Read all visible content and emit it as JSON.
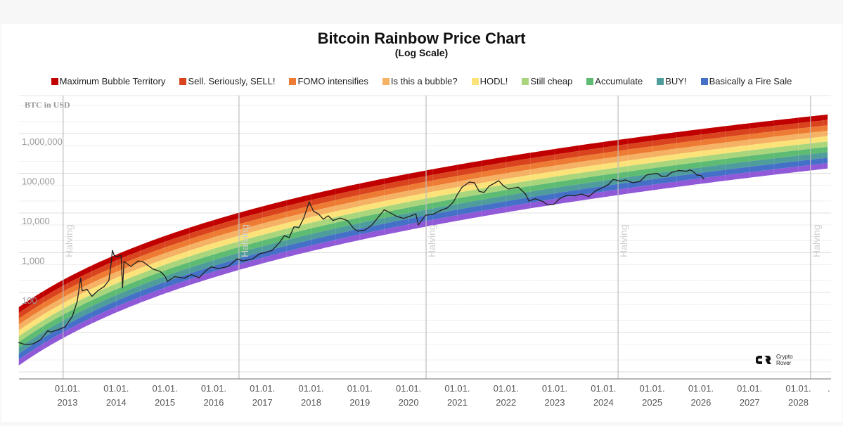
{
  "chart_data": {
    "type": "line",
    "title": "Bitcoin Rainbow Price Chart",
    "subtitle": "(Log Scale)",
    "ylabel": "BTC in USD",
    "xlabel": "",
    "yscale": "log",
    "ylim": [
      1,
      10000000
    ],
    "xlim": [
      2012.0,
      2028.6
    ],
    "y_ticks": [
      {
        "value": 1000000,
        "label": "1,000,000"
      },
      {
        "value": 100000,
        "label": "100,000"
      },
      {
        "value": 10000,
        "label": "10,000"
      },
      {
        "value": 1000,
        "label": "1,000"
      },
      {
        "value": 100,
        "label": "100"
      }
    ],
    "x_ticks": [
      {
        "year": 2013,
        "line1": "01.01.",
        "line2": "2013"
      },
      {
        "year": 2014,
        "line1": "01.01.",
        "line2": "2014"
      },
      {
        "year": 2015,
        "line1": "01.01.",
        "line2": "2015"
      },
      {
        "year": 2016,
        "line1": "01.01.",
        "line2": "2016"
      },
      {
        "year": 2017,
        "line1": "01.01.",
        "line2": "2017"
      },
      {
        "year": 2018,
        "line1": "01.01.",
        "line2": "2018"
      },
      {
        "year": 2019,
        "line1": "01.01.",
        "line2": "2019"
      },
      {
        "year": 2020,
        "line1": "01.01.",
        "line2": "2020"
      },
      {
        "year": 2021,
        "line1": "01.01.",
        "line2": "2021"
      },
      {
        "year": 2022,
        "line1": "01.01.",
        "line2": "2022"
      },
      {
        "year": 2023,
        "line1": "01.01.",
        "line2": "2023"
      },
      {
        "year": 2024,
        "line1": "01.01.",
        "line2": "2024"
      },
      {
        "year": 2025,
        "line1": "01.01.",
        "line2": "2025"
      },
      {
        "year": 2026,
        "line1": "01.01.",
        "line2": "2026"
      },
      {
        "year": 2027,
        "line1": "01.01.",
        "line2": "2027"
      },
      {
        "year": 2028,
        "line1": "01.01.",
        "line2": "2028"
      }
    ],
    "x_trailing_label": ".",
    "halvings": [
      {
        "year": 2012.91,
        "label": "Halving"
      },
      {
        "year": 2016.52,
        "label": "Halving"
      },
      {
        "year": 2020.36,
        "label": "Halving"
      },
      {
        "year": 2024.3,
        "label": "Halving"
      },
      {
        "year": 2028.25,
        "label": "Halving"
      }
    ],
    "legend_placement": "top",
    "bands": [
      {
        "name": "Maximum Bubble Territory",
        "color": "#c00000"
      },
      {
        "name": "Sell. Seriously, SELL!",
        "color": "#d9441f"
      },
      {
        "name": "FOMO intensifies",
        "color": "#ee7b33"
      },
      {
        "name": "Is this a bubble?",
        "color": "#f5b164"
      },
      {
        "name": "HODL!",
        "color": "#fbe37a"
      },
      {
        "name": "Still cheap",
        "color": "#a9d67c"
      },
      {
        "name": "Accumulate",
        "color": "#5dbb73"
      },
      {
        "name": "BUY!",
        "color": "#4e9c9b"
      },
      {
        "name": "Basically a Fire Sale",
        "color": "#4570c8"
      },
      {
        "name": "",
        "color": "#9059d8"
      }
    ],
    "band_model": {
      "top_log10_at_2012": 1.63,
      "top_log10_at_2028_6": 6.48,
      "band_width_decades_start": 1.47,
      "band_width_decades_end": 1.36
    },
    "series": [
      {
        "name": "BTC price",
        "color": "#222222",
        "points": [
          [
            2012.0,
            5.5
          ],
          [
            2012.1,
            5.0
          ],
          [
            2012.2,
            4.9
          ],
          [
            2012.3,
            5.1
          ],
          [
            2012.45,
            6.5
          ],
          [
            2012.6,
            11.0
          ],
          [
            2012.65,
            10.0
          ],
          [
            2012.8,
            11.5
          ],
          [
            2012.95,
            13.5
          ],
          [
            2013.1,
            25
          ],
          [
            2013.2,
            60
          ],
          [
            2013.27,
            230
          ],
          [
            2013.3,
            110
          ],
          [
            2013.4,
            120
          ],
          [
            2013.5,
            80
          ],
          [
            2013.62,
            110
          ],
          [
            2013.75,
            140
          ],
          [
            2013.85,
            200
          ],
          [
            2013.9,
            600
          ],
          [
            2013.92,
            1150
          ],
          [
            2013.96,
            850
          ],
          [
            2014.0,
            800
          ],
          [
            2014.1,
            850
          ],
          [
            2014.13,
            130
          ],
          [
            2014.16,
            600
          ],
          [
            2014.3,
            450
          ],
          [
            2014.45,
            620
          ],
          [
            2014.55,
            590
          ],
          [
            2014.65,
            480
          ],
          [
            2014.75,
            390
          ],
          [
            2014.9,
            340
          ],
          [
            2015.0,
            260
          ],
          [
            2015.05,
            190
          ],
          [
            2015.2,
            250
          ],
          [
            2015.4,
            230
          ],
          [
            2015.55,
            280
          ],
          [
            2015.7,
            235
          ],
          [
            2015.85,
            360
          ],
          [
            2015.95,
            440
          ],
          [
            2016.1,
            400
          ],
          [
            2016.3,
            450
          ],
          [
            2016.48,
            700
          ],
          [
            2016.6,
            620
          ],
          [
            2016.8,
            700
          ],
          [
            2016.95,
            950
          ],
          [
            2017.05,
            1000
          ],
          [
            2017.2,
            1150
          ],
          [
            2017.35,
            1800
          ],
          [
            2017.45,
            2700
          ],
          [
            2017.55,
            2400
          ],
          [
            2017.65,
            4500
          ],
          [
            2017.75,
            4300
          ],
          [
            2017.85,
            7500
          ],
          [
            2017.96,
            19000
          ],
          [
            2018.05,
            11000
          ],
          [
            2018.15,
            9500
          ],
          [
            2018.25,
            7000
          ],
          [
            2018.35,
            8500
          ],
          [
            2018.45,
            6500
          ],
          [
            2018.6,
            7500
          ],
          [
            2018.75,
            6400
          ],
          [
            2018.88,
            4000
          ],
          [
            2018.96,
            3500
          ],
          [
            2019.1,
            3700
          ],
          [
            2019.25,
            5000
          ],
          [
            2019.4,
            8500
          ],
          [
            2019.5,
            12000
          ],
          [
            2019.6,
            10500
          ],
          [
            2019.75,
            8300
          ],
          [
            2019.9,
            7300
          ],
          [
            2020.05,
            8500
          ],
          [
            2020.15,
            9500
          ],
          [
            2020.2,
            5000
          ],
          [
            2020.35,
            8800
          ],
          [
            2020.5,
            9200
          ],
          [
            2020.65,
            11500
          ],
          [
            2020.8,
            13500
          ],
          [
            2020.92,
            19000
          ],
          [
            2021.0,
            29000
          ],
          [
            2021.1,
            45000
          ],
          [
            2021.25,
            60000
          ],
          [
            2021.35,
            58000
          ],
          [
            2021.45,
            35000
          ],
          [
            2021.55,
            33000
          ],
          [
            2021.65,
            47000
          ],
          [
            2021.85,
            65000
          ],
          [
            2021.95,
            48000
          ],
          [
            2022.05,
            40000
          ],
          [
            2022.25,
            45000
          ],
          [
            2022.4,
            30000
          ],
          [
            2022.47,
            20000
          ],
          [
            2022.6,
            23000
          ],
          [
            2022.75,
            19500
          ],
          [
            2022.86,
            16000
          ],
          [
            2022.98,
            16500
          ],
          [
            2023.1,
            23000
          ],
          [
            2023.25,
            28000
          ],
          [
            2023.4,
            27000
          ],
          [
            2023.55,
            30000
          ],
          [
            2023.7,
            26000
          ],
          [
            2023.85,
            37000
          ],
          [
            2023.98,
            43000
          ],
          [
            2024.1,
            52000
          ],
          [
            2024.2,
            70000
          ],
          [
            2024.35,
            63000
          ],
          [
            2024.45,
            68000
          ],
          [
            2024.6,
            58000
          ],
          [
            2024.75,
            62000
          ],
          [
            2024.88,
            90000
          ],
          [
            2024.97,
            95000
          ],
          [
            2025.1,
            100000
          ],
          [
            2025.2,
            83000
          ],
          [
            2025.3,
            85000
          ],
          [
            2025.4,
            105000
          ],
          [
            2025.55,
            118000
          ],
          [
            2025.7,
            112000
          ],
          [
            2025.78,
            122000
          ],
          [
            2025.85,
            108000
          ],
          [
            2025.92,
            90000
          ],
          [
            2026.0,
            88000
          ],
          [
            2026.06,
            72000
          ]
        ]
      }
    ]
  },
  "watermark": {
    "line1": "Crypto",
    "line2": "Rover"
  }
}
